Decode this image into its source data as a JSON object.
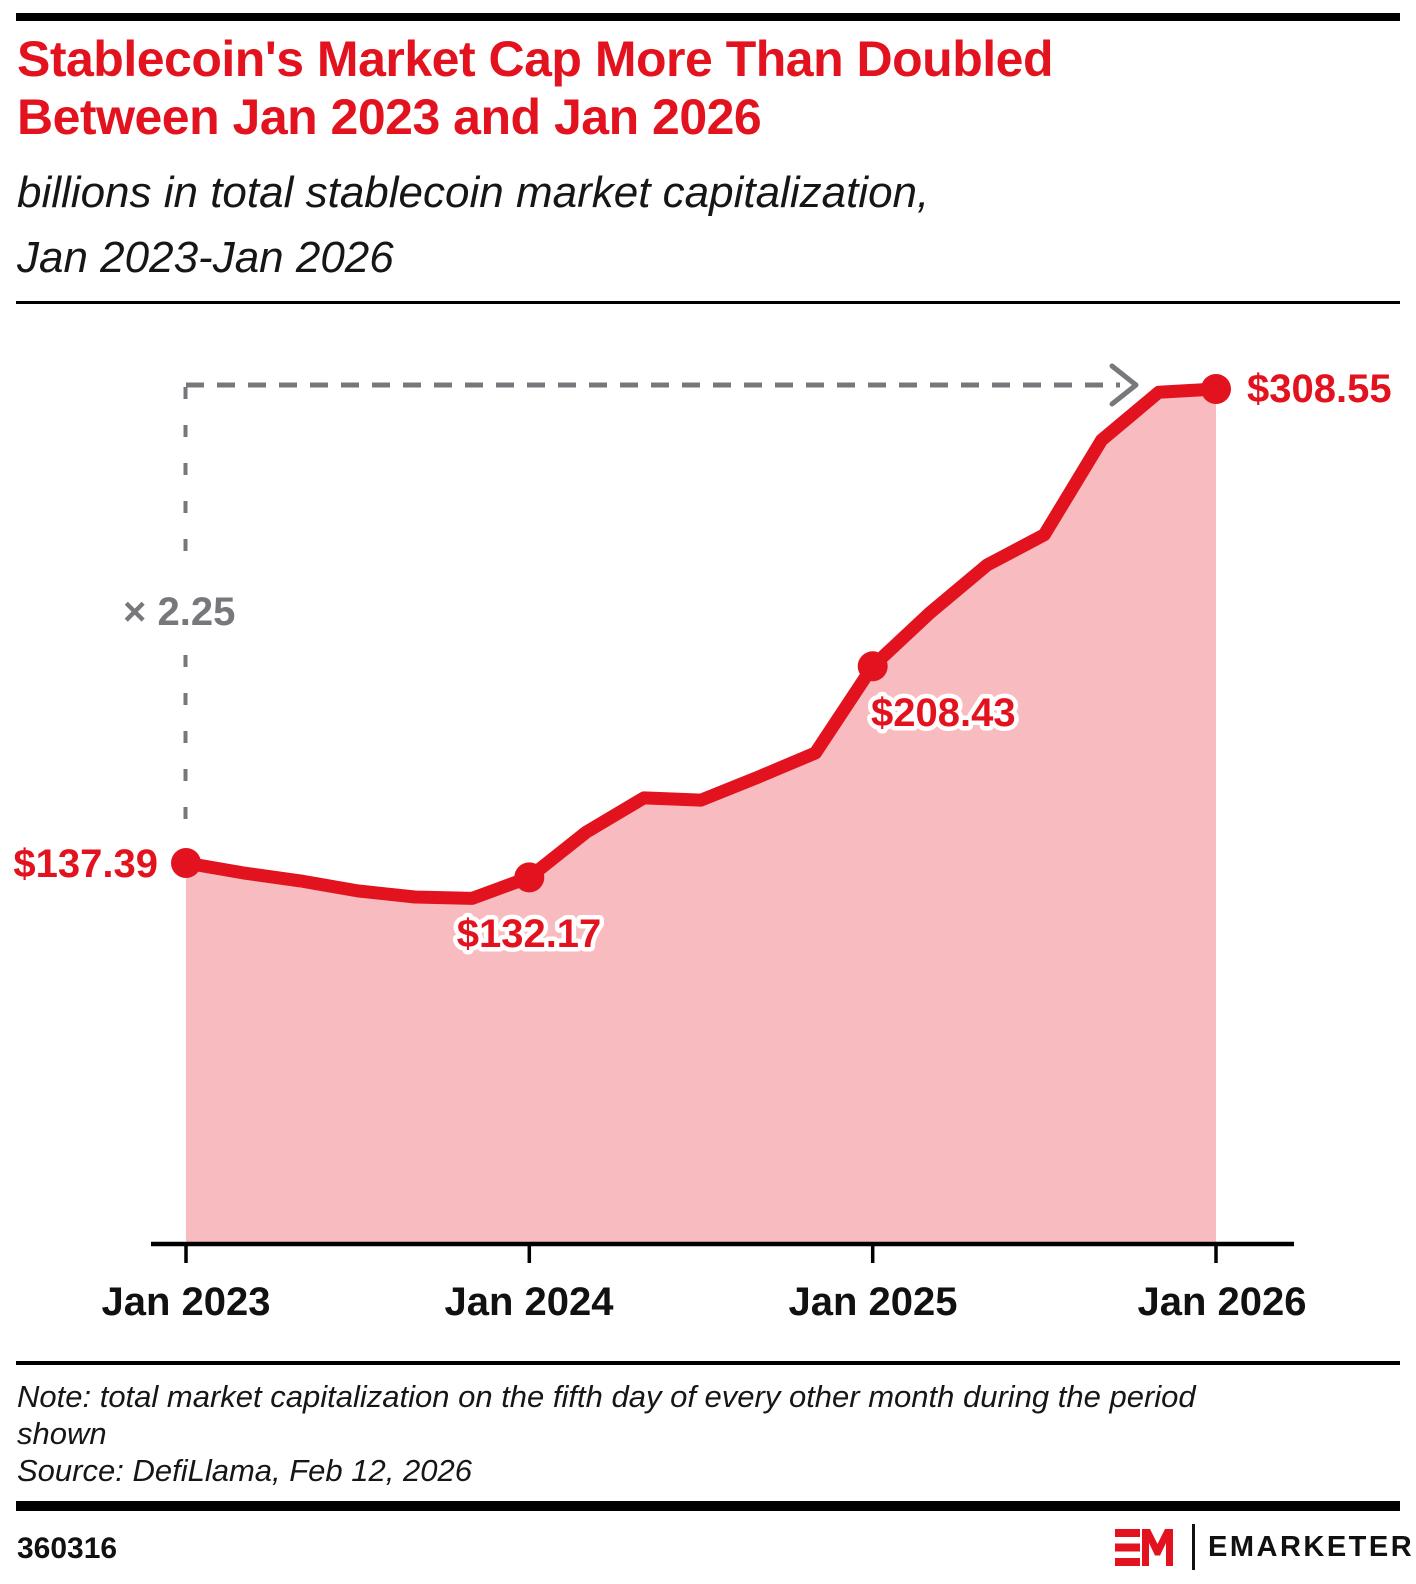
{
  "header": {
    "title_line1": "Stablecoin's Market Cap More Than Doubled",
    "title_line2": "Between Jan 2023 and Jan 2026",
    "subtitle_line1": "billions in total stablecoin market capitalization,",
    "subtitle_line2": "Jan 2023-Jan 2026"
  },
  "chart_data": {
    "type": "area",
    "title": "Stablecoin's Market Cap More Than Doubled Between Jan 2023 and Jan 2026",
    "subtitle": "billions in total stablecoin market capitalization, Jan 2023-Jan 2026",
    "x": [
      "Jan 2023",
      "Mar 2023",
      "May 2023",
      "Jul 2023",
      "Sep 2023",
      "Nov 2023",
      "Jan 2024",
      "Mar 2024",
      "May 2024",
      "Jul 2024",
      "Sep 2024",
      "Nov 2024",
      "Jan 2025",
      "Mar 2025",
      "May 2025",
      "Jul 2025",
      "Sep 2025",
      "Nov 2025",
      "Jan 2026"
    ],
    "values": [
      137.39,
      133.8,
      130.9,
      127.3,
      125.1,
      124.6,
      132.17,
      148.6,
      160.9,
      160.1,
      168.4,
      177.1,
      208.43,
      227.7,
      245.0,
      255.9,
      290.1,
      307.4,
      308.55
    ],
    "x_tick_labels": [
      "Jan 2023",
      "Jan 2024",
      "Jan 2025",
      "Jan 2026"
    ],
    "key_points": [
      {
        "x": "Jan 2023",
        "value": 137.39,
        "label": "$137.39"
      },
      {
        "x": "Jan 2024",
        "value": 132.17,
        "label": "$132.17"
      },
      {
        "x": "Jan 2025",
        "value": 208.43,
        "label": "$208.43"
      },
      {
        "x": "Jan 2026",
        "value": 308.55,
        "label": "$308.55"
      }
    ],
    "annotation_multiplier": "× 2.25",
    "ylim": [
      0,
      330
    ],
    "grid": false,
    "legend": false,
    "colors": {
      "line": "#e2131f",
      "fill": "#f8bbc0",
      "annotation": "#77787b"
    }
  },
  "footnote": {
    "note_line1": "Note: total market capitalization on the fifth day of every other month during the period",
    "note_line2": "shown",
    "source": "Source: DefiLlama, Feb 12, 2026"
  },
  "footer": {
    "chart_id": "360316",
    "brand": "EMARKETER"
  }
}
